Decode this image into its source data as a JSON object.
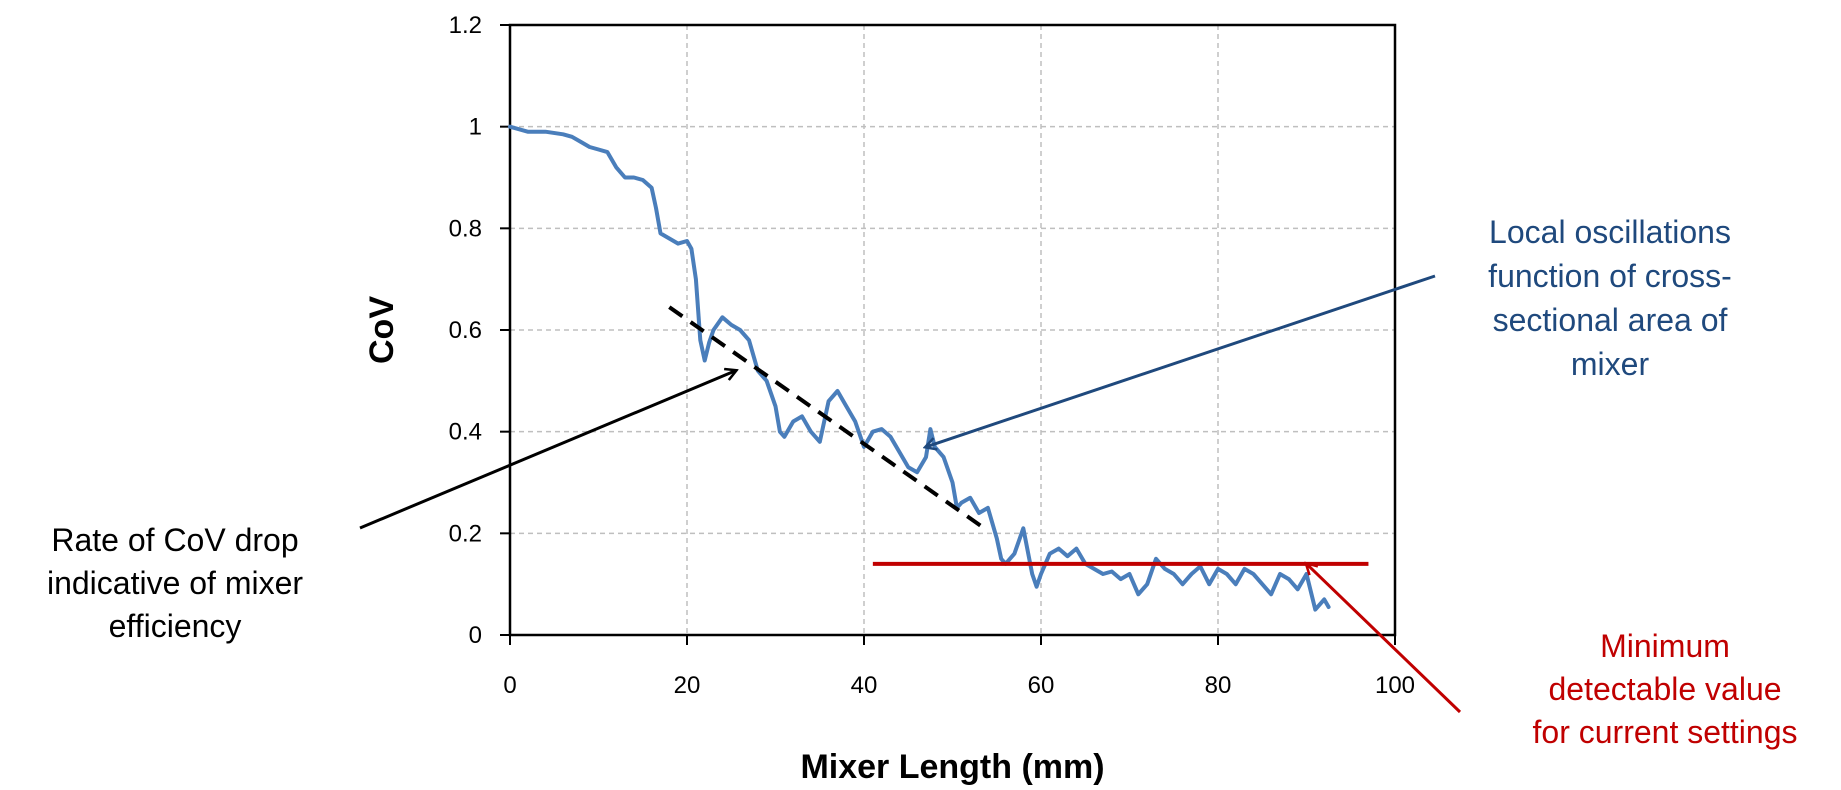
{
  "chart_data": {
    "type": "line",
    "title": "",
    "xlabel": "Mixer Length (mm)",
    "ylabel": "CoV",
    "xlim": [
      0,
      100
    ],
    "ylim": [
      0,
      1.2
    ],
    "x_ticks": [
      "0",
      "20",
      "40",
      "60",
      "80",
      "100"
    ],
    "y_ticks": [
      "0",
      "0.2",
      "0.4",
      "0.6",
      "0.8",
      "1",
      "1.2"
    ],
    "grid": true,
    "series": [
      {
        "color": "#4a7ebb",
        "points": [
          [
            0,
            1.0
          ],
          [
            2,
            0.99
          ],
          [
            4,
            0.99
          ],
          [
            6,
            0.985
          ],
          [
            7,
            0.98
          ],
          [
            8,
            0.97
          ],
          [
            9,
            0.96
          ],
          [
            10,
            0.955
          ],
          [
            11,
            0.95
          ],
          [
            12,
            0.92
          ],
          [
            13,
            0.9
          ],
          [
            14,
            0.9
          ],
          [
            15,
            0.895
          ],
          [
            16,
            0.88
          ],
          [
            16.5,
            0.84
          ],
          [
            17,
            0.79
          ],
          [
            18,
            0.78
          ],
          [
            19,
            0.77
          ],
          [
            20,
            0.775
          ],
          [
            20.5,
            0.76
          ],
          [
            21,
            0.7
          ],
          [
            21.5,
            0.58
          ],
          [
            22,
            0.54
          ],
          [
            22.5,
            0.575
          ],
          [
            23,
            0.6
          ],
          [
            24,
            0.625
          ],
          [
            25,
            0.61
          ],
          [
            26,
            0.6
          ],
          [
            27,
            0.58
          ],
          [
            28,
            0.52
          ],
          [
            29,
            0.5
          ],
          [
            30,
            0.45
          ],
          [
            30.5,
            0.4
          ],
          [
            31,
            0.39
          ],
          [
            32,
            0.42
          ],
          [
            33,
            0.43
          ],
          [
            34,
            0.4
          ],
          [
            35,
            0.38
          ],
          [
            36,
            0.46
          ],
          [
            37,
            0.48
          ],
          [
            38,
            0.45
          ],
          [
            39,
            0.42
          ],
          [
            40,
            0.37
          ],
          [
            41,
            0.4
          ],
          [
            42,
            0.405
          ],
          [
            43,
            0.39
          ],
          [
            44,
            0.36
          ],
          [
            45,
            0.33
          ],
          [
            46,
            0.32
          ],
          [
            47,
            0.35
          ],
          [
            47.5,
            0.405
          ],
          [
            48,
            0.37
          ],
          [
            49,
            0.35
          ],
          [
            50,
            0.3
          ],
          [
            50.5,
            0.25
          ],
          [
            51,
            0.26
          ],
          [
            52,
            0.27
          ],
          [
            53,
            0.24
          ],
          [
            54,
            0.25
          ],
          [
            55,
            0.19
          ],
          [
            55.5,
            0.15
          ],
          [
            56,
            0.14
          ],
          [
            57,
            0.16
          ],
          [
            58,
            0.21
          ],
          [
            59,
            0.12
          ],
          [
            59.5,
            0.095
          ],
          [
            60,
            0.12
          ],
          [
            61,
            0.16
          ],
          [
            62,
            0.17
          ],
          [
            63,
            0.155
          ],
          [
            64,
            0.17
          ],
          [
            65,
            0.14
          ],
          [
            66,
            0.13
          ],
          [
            67,
            0.12
          ],
          [
            68,
            0.125
          ],
          [
            69,
            0.11
          ],
          [
            70,
            0.12
          ],
          [
            71,
            0.08
          ],
          [
            72,
            0.1
          ],
          [
            73,
            0.15
          ],
          [
            74,
            0.13
          ],
          [
            75,
            0.12
          ],
          [
            76,
            0.1
          ],
          [
            77,
            0.12
          ],
          [
            78,
            0.135
          ],
          [
            79,
            0.1
          ],
          [
            80,
            0.13
          ],
          [
            81,
            0.12
          ],
          [
            82,
            0.1
          ],
          [
            83,
            0.13
          ],
          [
            84,
            0.12
          ],
          [
            85,
            0.1
          ],
          [
            86,
            0.08
          ],
          [
            87,
            0.12
          ],
          [
            88,
            0.11
          ],
          [
            89,
            0.09
          ],
          [
            90,
            0.12
          ],
          [
            91,
            0.05
          ],
          [
            92,
            0.07
          ],
          [
            92.5,
            0.055
          ]
        ]
      }
    ],
    "overlays": {
      "trend_line": {
        "color": "#000000",
        "style": "dashed",
        "from": [
          18,
          0.645
        ],
        "to": [
          54,
          0.205
        ]
      },
      "minimum_line": {
        "color": "#c00000",
        "y": 0.14,
        "x_from": 41,
        "x_to": 97
      }
    },
    "annotations": [
      {
        "key": "rate",
        "lines": [
          "Rate of CoV drop",
          "indicative of mixer",
          "efficiency"
        ],
        "color": "#000000",
        "points_to": [
          25.5,
          0.52
        ]
      },
      {
        "key": "local",
        "lines": [
          "Local oscillations",
          "function of cross-",
          "sectional area of",
          "mixer"
        ],
        "color": "#1f497d",
        "points_to": [
          47,
          0.37
        ]
      },
      {
        "key": "minimum",
        "lines": [
          "Minimum",
          "detectable value",
          "for current settings"
        ],
        "color": "#c00000",
        "points_to": [
          90,
          0.14
        ]
      }
    ]
  }
}
